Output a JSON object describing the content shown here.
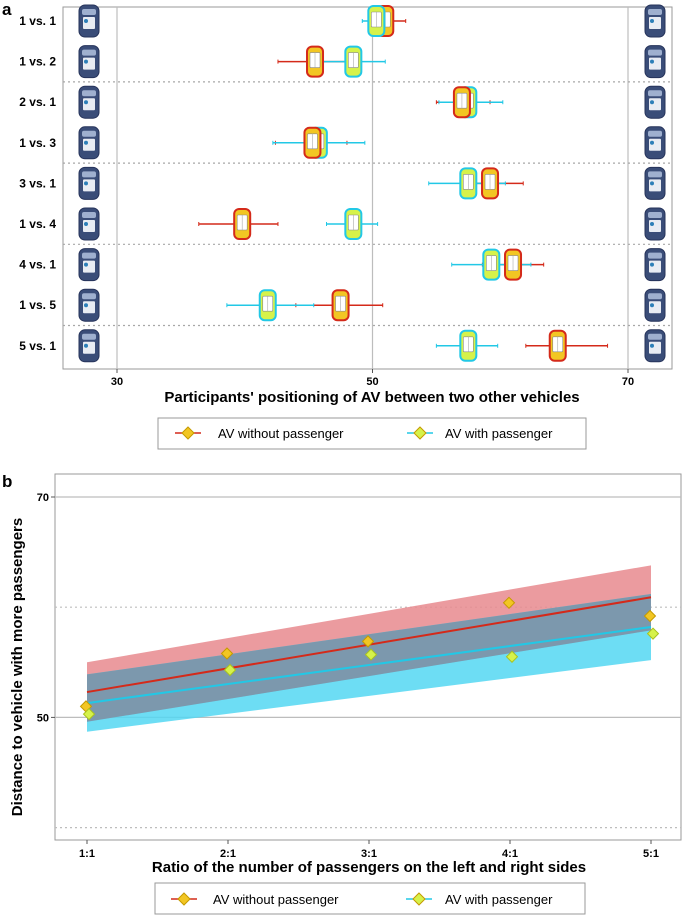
{
  "figure": {
    "panel_a_label": "a",
    "panel_b_label": "b"
  },
  "colors": {
    "no_passenger": "#d42a1a",
    "with_passenger": "#22c8e6",
    "marker_no_passenger": "#f2c623",
    "marker_with_passenger": "#d6f24a",
    "band_no_passenger": "#e78a8e",
    "band_with_passenger": "#54d7f2",
    "band_overlap": "#7c98ad",
    "car_body": "#3a4d78",
    "grid": "#bdbdbd"
  },
  "chart_data": [
    {
      "type": "scatter",
      "panel": "a",
      "title": "",
      "xlabel": "Participants' positioning of AV between two other vehicles",
      "ylabel": "",
      "xlim": [
        26,
        74
      ],
      "xticks": [
        30,
        50,
        70
      ],
      "categories": [
        "1 vs. 1",
        "1 vs. 2",
        "2 vs. 1",
        "1 vs. 3",
        "3 vs. 1",
        "1 vs. 4",
        "4 vs. 1",
        "1 vs. 5",
        "5 vs. 1"
      ],
      "series": [
        {
          "name": "AV without passenger",
          "values": [
            51.0,
            45.5,
            57.0,
            45.3,
            59.2,
            39.8,
            61.0,
            47.5,
            64.5
          ],
          "lower": [
            49.8,
            42.6,
            55.0,
            42.4,
            57.6,
            36.4,
            58.6,
            44.0,
            62.0
          ],
          "upper": [
            52.6,
            48.4,
            59.2,
            48.0,
            61.8,
            42.6,
            63.4,
            50.8,
            68.4
          ]
        },
        {
          "name": "AV with passenger",
          "values": [
            50.3,
            48.5,
            57.5,
            45.8,
            57.5,
            48.5,
            59.3,
            41.8,
            57.5
          ],
          "lower": [
            49.2,
            45.2,
            55.2,
            42.2,
            54.4,
            46.4,
            56.2,
            38.6,
            55.0
          ],
          "upper": [
            51.6,
            51.0,
            60.2,
            49.4,
            60.4,
            50.4,
            62.4,
            45.4,
            59.8
          ]
        }
      ],
      "legend": {
        "position": "bottom",
        "entries": [
          "AV without passenger",
          "AV with passenger"
        ]
      }
    },
    {
      "type": "line",
      "panel": "b",
      "title": "",
      "xlabel": "Ratio of the number of passengers on the left and right sides",
      "ylabel": "Distance to vehicle with more passengers",
      "categories": [
        "1:1",
        "2:1",
        "3:1",
        "4:1",
        "5:1"
      ],
      "x": [
        1,
        2,
        3,
        4,
        5
      ],
      "ylim": [
        38.5,
        72
      ],
      "yticks": [
        50,
        70
      ],
      "gridlines": [
        40,
        50,
        60,
        70
      ],
      "series": [
        {
          "name": "AV without passenger",
          "points": [
            51.0,
            55.8,
            56.9,
            60.4,
            59.2
          ],
          "fit": [
            52.3,
            60.9
          ],
          "band_lower": [
            49.6,
            57.9
          ],
          "band_upper": [
            55.0,
            63.8
          ]
        },
        {
          "name": "AV with passenger",
          "points": [
            50.3,
            54.3,
            55.7,
            55.5,
            57.6
          ],
          "fit": [
            51.3,
            58.2
          ],
          "band_lower": [
            48.7,
            55.2
          ],
          "band_upper": [
            53.9,
            61.2
          ]
        }
      ],
      "legend": {
        "position": "bottom",
        "entries": [
          "AV without passenger",
          "AV with passenger"
        ]
      }
    }
  ]
}
